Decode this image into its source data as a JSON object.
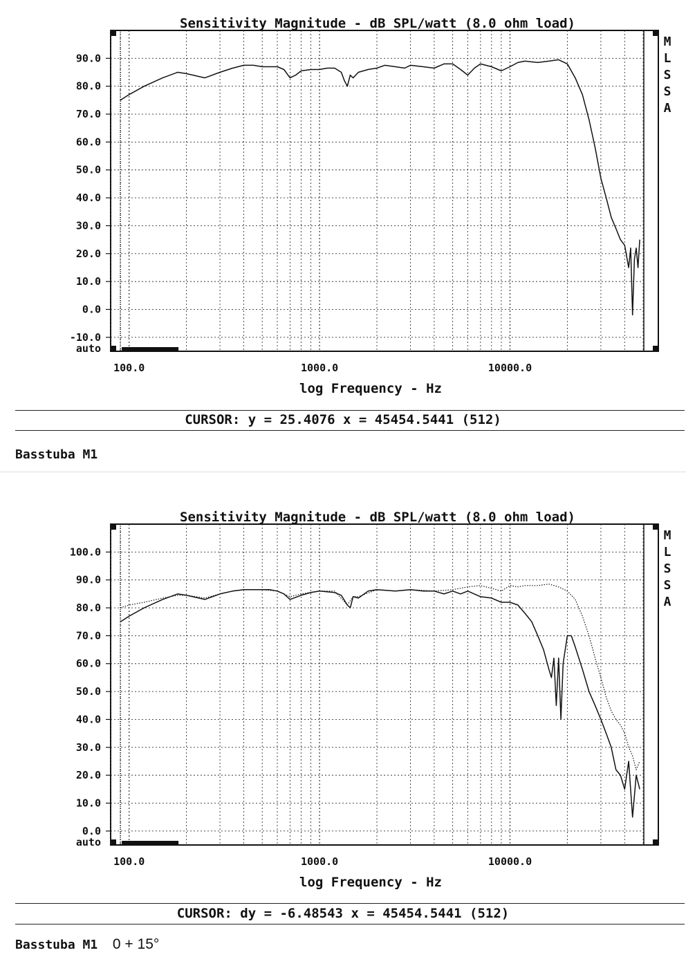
{
  "panels": [
    {
      "chart_data": {
        "type": "line",
        "title": "Sensitivity Magnitude - dB SPL/watt (8.0 ohm load)",
        "xlabel": "log Frequency - Hz",
        "ylabel": "",
        "x_scale": "log",
        "xlim": [
          80,
          50000
        ],
        "ylim": [
          -15,
          100
        ],
        "y_ticks": [
          "90.0",
          "80.0",
          "70.0",
          "60.0",
          "50.0",
          "40.0",
          "30.0",
          "20.0",
          "10.0",
          "0.0",
          "-10.0"
        ],
        "y_tick_values": [
          90,
          80,
          70,
          60,
          50,
          40,
          30,
          20,
          10,
          0,
          -10
        ],
        "y_bottom_label": "auto",
        "x_ticks": [
          "100.0",
          "1000.0",
          "10000.0"
        ],
        "x_tick_values": [
          100,
          1000,
          10000
        ],
        "grid": true,
        "series": [
          {
            "style": "solid",
            "x": [
              90,
              100,
              120,
              150,
              180,
              200,
              250,
              300,
              350,
              400,
              450,
              500,
              550,
              600,
              650,
              700,
              750,
              800,
              900,
              1000,
              1100,
              1200,
              1300,
              1350,
              1400,
              1450,
              1500,
              1600,
              1800,
              2000,
              2200,
              2500,
              2800,
              3000,
              3500,
              4000,
              4500,
              5000,
              5500,
              6000,
              6500,
              7000,
              8000,
              9000,
              10000,
              11000,
              12000,
              14000,
              16000,
              18000,
              20000,
              22000,
              24000,
              26000,
              28000,
              30000,
              32000,
              34000,
              36000,
              38000,
              40000,
              42000,
              43000,
              44000,
              45000,
              46000,
              47000,
              48000
            ],
            "values": [
              75,
              77,
              80,
              83,
              85,
              84.5,
              83,
              85,
              86.5,
              87.5,
              87.5,
              87,
              87,
              87,
              86,
              83,
              84,
              85.5,
              86,
              86,
              86.5,
              86.5,
              85,
              82,
              80,
              84,
              83,
              85,
              86,
              86.5,
              87.5,
              87,
              86.5,
              87.5,
              87,
              86.5,
              88,
              88,
              86,
              84,
              86.5,
              88,
              87,
              85.5,
              87,
              88.5,
              89,
              88.5,
              89,
              89.5,
              88,
              83,
              77,
              68,
              58,
              47,
              40,
              33,
              29,
              25,
              23,
              15,
              22,
              -2,
              18,
              22,
              15,
              25
            ]
          }
        ]
      },
      "cursor_text": "CURSOR: y = 25.4076 x = 45454.5441 (512)",
      "caption": "Basstuba M1",
      "caption_note": "",
      "mlssa_letters": [
        "M",
        "L",
        "S",
        "S",
        "A"
      ]
    },
    {
      "chart_data": {
        "type": "line",
        "title": "Sensitivity Magnitude - dB SPL/watt (8.0 ohm load)",
        "xlabel": "log Frequency - Hz",
        "ylabel": "",
        "x_scale": "log",
        "xlim": [
          80,
          50000
        ],
        "ylim": [
          -5,
          110
        ],
        "y_ticks": [
          "100.0",
          "90.0",
          "80.0",
          "70.0",
          "60.0",
          "50.0",
          "40.0",
          "30.0",
          "20.0",
          "10.0",
          "0.0"
        ],
        "y_tick_values": [
          100,
          90,
          80,
          70,
          60,
          50,
          40,
          30,
          20,
          10,
          0
        ],
        "y_bottom_label": "auto",
        "x_ticks": [
          "100.0",
          "1000.0",
          "10000.0"
        ],
        "x_tick_values": [
          100,
          1000,
          10000
        ],
        "grid": true,
        "series": [
          {
            "style": "solid",
            "x": [
              90,
              100,
              120,
              150,
              180,
              200,
              250,
              300,
              350,
              400,
              450,
              500,
              550,
              600,
              650,
              700,
              800,
              900,
              1000,
              1200,
              1300,
              1400,
              1450,
              1500,
              1600,
              1800,
              2000,
              2500,
              3000,
              3500,
              4000,
              4500,
              5000,
              5500,
              6000,
              7000,
              8000,
              9000,
              10000,
              11000,
              12000,
              13000,
              14000,
              15000,
              16000,
              16500,
              17000,
              17500,
              18000,
              18500,
              19000,
              20000,
              21000,
              22000,
              24000,
              26000,
              28000,
              30000,
              32000,
              34000,
              36000,
              38000,
              40000,
              42000,
              44000,
              46000,
              48000
            ],
            "values": [
              75,
              77,
              80,
              83,
              85,
              84.5,
              83,
              85,
              86,
              86.5,
              86.5,
              86.5,
              86.5,
              86,
              85,
              83,
              84.5,
              85.5,
              86,
              85.5,
              84.5,
              81,
              80,
              84,
              83.5,
              86,
              86.5,
              86,
              86.5,
              86,
              86,
              85,
              86,
              85,
              86,
              84,
              83.5,
              82,
              82,
              81,
              78,
              75,
              70,
              65,
              58,
              55,
              62,
              45,
              62,
              40,
              60,
              70,
              70,
              66,
              58,
              50,
              45,
              40,
              35,
              30,
              22,
              20,
              15,
              25,
              5,
              20,
              15
            ]
          },
          {
            "style": "dotted",
            "x": [
              90,
              100,
              120,
              150,
              180,
              200,
              250,
              300,
              350,
              400,
              500,
              600,
              700,
              800,
              1000,
              1200,
              1400,
              1500,
              1600,
              2000,
              2500,
              3000,
              4000,
              5000,
              6000,
              7000,
              8000,
              9000,
              10000,
              11000,
              12000,
              14000,
              16000,
              18000,
              20000,
              22000,
              24000,
              26000,
              28000,
              30000,
              32000,
              34000,
              36000,
              38000,
              40000,
              42000,
              44000,
              46000,
              48000
            ],
            "values": [
              80,
              81,
              82,
              83.5,
              84.5,
              84.5,
              83.5,
              85,
              86,
              86.5,
              86.5,
              86,
              84,
              85,
              86,
              86,
              81,
              84,
              84,
              86.5,
              86,
              86.5,
              86,
              86.5,
              87.5,
              88,
              87,
              86,
              88,
              87.5,
              88,
              88,
              88.5,
              87.5,
              86,
              83,
              77,
              70,
              62,
              55,
              48,
              43,
              40,
              38,
              35,
              30,
              27,
              22,
              25
            ]
          }
        ]
      },
      "cursor_text": "CURSOR: dy = -6.48543 x = 45454.5441 (512)",
      "caption": "Basstuba M1",
      "caption_note": "0 + 15°",
      "mlssa_letters": [
        "M",
        "L",
        "S",
        "S",
        "A"
      ]
    }
  ]
}
